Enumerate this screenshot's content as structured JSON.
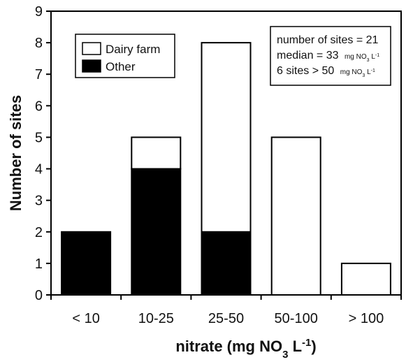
{
  "chart_data": {
    "type": "bar",
    "stacked": true,
    "categories": [
      "< 10",
      "10-25",
      "25-50",
      "50-100",
      "> 100"
    ],
    "series": [
      {
        "name": "Other",
        "color": "#000000",
        "values": [
          2,
          4,
          2,
          0,
          0
        ]
      },
      {
        "name": "Dairy farm",
        "color": "#ffffff",
        "values": [
          0,
          1,
          6,
          5,
          1
        ]
      }
    ],
    "xlabel": {
      "main": "nitrate (mg NO",
      "sub": "3",
      "mid": " L",
      "sup": "-1",
      "end": ")"
    },
    "ylabel": "Number of sites",
    "ylim": [
      0,
      9
    ],
    "yticks": [
      0,
      1,
      2,
      3,
      4,
      5,
      6,
      7,
      8,
      9
    ],
    "grid": false,
    "legend_position": "top-left",
    "annotation": {
      "line1": "number  of sites = 21",
      "line2_main": "median = 33",
      "line2_unit": "mg NO",
      "line2_unit_sub": "3",
      "line2_unit_end": " L",
      "line2_unit_sup": "-1",
      "line3_main": "6 sites > 50",
      "line3_unit": "mg NO",
      "line3_unit_sub": "3",
      "line3_unit_end": " L",
      "line3_unit_sup": "-1"
    }
  }
}
